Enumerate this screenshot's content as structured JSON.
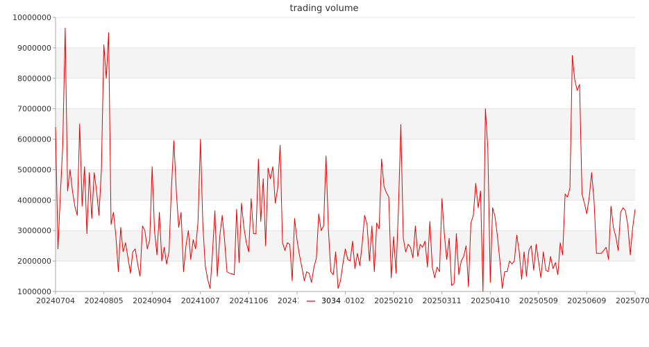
{
  "chart_data": {
    "type": "line",
    "title": "trading volume",
    "xlabel": "",
    "ylabel": "",
    "ylim": [
      1000000,
      10000000
    ],
    "yticks": [
      1000000,
      2000000,
      3000000,
      4000000,
      5000000,
      6000000,
      7000000,
      8000000,
      9000000,
      10000000
    ],
    "ytick_labels": [
      "1000000",
      "2000000",
      "3000000",
      "4000000",
      "5000000",
      "6000000",
      "7000000",
      "8000000",
      "9000000",
      "10000000"
    ],
    "xtick_labels": [
      "20240704",
      "20240805",
      "20240904",
      "20241007",
      "20241106",
      "20241206",
      "20250102",
      "20250210",
      "20250311",
      "20250410",
      "20250509",
      "20250609",
      "20250708"
    ],
    "grid": true,
    "legend_position": "bottom-center",
    "series": [
      {
        "name": "3034",
        "color": "#e60000",
        "values": [
          6400000,
          2400000,
          4200000,
          5800000,
          9650000,
          4300000,
          5000000,
          4300000,
          3800000,
          3500000,
          6500000,
          3800000,
          5100000,
          2900000,
          4900000,
          3400000,
          4900000,
          4300000,
          3500000,
          5000000,
          9100000,
          8000000,
          9500000,
          3200000,
          3600000,
          2800000,
          1650000,
          3100000,
          2300000,
          2600000,
          2100000,
          1600000,
          2300000,
          2400000,
          1900000,
          1500000,
          3150000,
          3000000,
          2400000,
          2700000,
          5100000,
          3000000,
          2200000,
          3600000,
          2000000,
          2450000,
          1900000,
          2300000,
          4400000,
          5950000,
          4300000,
          3100000,
          3600000,
          1650000,
          2500000,
          3000000,
          2050000,
          2700000,
          2400000,
          3300000,
          6000000,
          3200000,
          1850000,
          1400000,
          1100000,
          2250000,
          3650000,
          1500000,
          2800000,
          3500000,
          2700000,
          1650000,
          1600000,
          1580000,
          1550000,
          3700000,
          1950000,
          3900000,
          3100000,
          2600000,
          2300000,
          4050000,
          2900000,
          2900000,
          5350000,
          3300000,
          4700000,
          2500000,
          5050000,
          4700000,
          5100000,
          3900000,
          4400000,
          5800000,
          2600000,
          2350000,
          2600000,
          2550000,
          1350000,
          3400000,
          2700000,
          2200000,
          1800000,
          1350000,
          1650000,
          1600000,
          1300000,
          1800000,
          2100000,
          3550000,
          3000000,
          3150000,
          5450000,
          3050000,
          1650000,
          1550000,
          2300000,
          1100000,
          1350000,
          1900000,
          2400000,
          2050000,
          2000000,
          2650000,
          1750000,
          2250000,
          1850000,
          2600000,
          3500000,
          3200000,
          2000000,
          3150000,
          1650000,
          3250000,
          3050000,
          5350000,
          4450000,
          4250000,
          4100000,
          1450000,
          2800000,
          1600000,
          3700000,
          6480000,
          2750000,
          2300000,
          2550000,
          2450000,
          2100000,
          3150000,
          2150000,
          2550000,
          2450000,
          2650000,
          1800000,
          3300000,
          1800000,
          1450000,
          1800000,
          1650000,
          4050000,
          2900000,
          2050000,
          2750000,
          1200000,
          1250000,
          2900000,
          1550000,
          2000000,
          2150000,
          2500000,
          1150000,
          3250000,
          3500000,
          4550000,
          3750000,
          4300000,
          1000000,
          7000000,
          5700000,
          1300000,
          3750000,
          3450000,
          2800000,
          2000000,
          1100000,
          1650000,
          1650000,
          2000000,
          1900000,
          2000000,
          2850000,
          2300000,
          1400000,
          2300000,
          1500000,
          2350000,
          2500000,
          1700000,
          2550000,
          2000000,
          1450000,
          2300000,
          1700000,
          1650000,
          2150000,
          1750000,
          1950000,
          1550000,
          2600000,
          2200000,
          4200000,
          4100000,
          4400000,
          8750000,
          7950000,
          7600000,
          7800000,
          4200000,
          3900000,
          3550000,
          4100000,
          4900000,
          3950000,
          2250000,
          2250000,
          2250000,
          2350000,
          2450000,
          2050000,
          3800000,
          3100000,
          2800000,
          2350000,
          3600000,
          3750000,
          3650000,
          3150000,
          2200000,
          3100000,
          3700000
        ]
      }
    ]
  },
  "colors": {
    "band_fill": "#f4f4f4",
    "grid_line": "#e4e4e4",
    "axis_line": "#aaaaaa",
    "line": "#e60000"
  }
}
